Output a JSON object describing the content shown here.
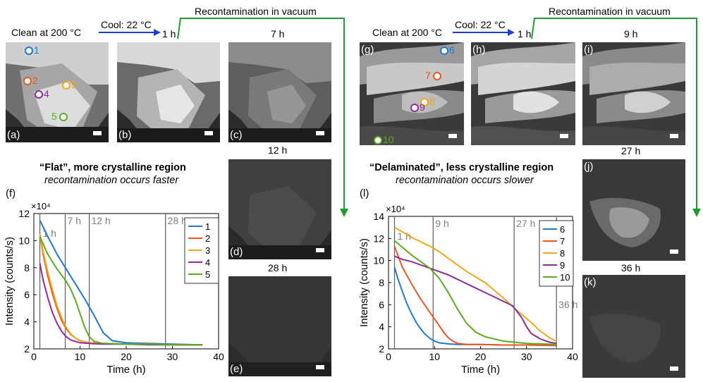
{
  "left": {
    "clean_label": "Clean at 200 °C",
    "cool_label": "Cool: 22 °C",
    "recont_label": "Recontamination in vacuum",
    "time_b": "1 h",
    "time_c": "7 h",
    "time_d": "12 h",
    "time_e": "28 h",
    "panels": {
      "a": "(a)",
      "b": "(b)",
      "c": "(c)",
      "d": "(d)",
      "e": "(e)",
      "f": "(f)"
    },
    "points": [
      {
        "label": "1",
        "color": "#1f77d0"
      },
      {
        "label": "2",
        "color": "#e8581c"
      },
      {
        "label": "3",
        "color": "#f2a51a"
      },
      {
        "label": "4",
        "color": "#8e2a9e"
      },
      {
        "label": "5",
        "color": "#5aab1e"
      }
    ],
    "title": "“Flat”, more crystalline region",
    "subtitle": "recontamination occurs faster"
  },
  "right": {
    "clean_label": "Clean at 200 °C",
    "cool_label": "Cool: 22 °C",
    "recont_label": "Recontamination in vacuum",
    "time_h": "1 h",
    "time_i": "9 h",
    "time_j": "27 h",
    "time_k": "36 h",
    "panels": {
      "g": "(g)",
      "h": "(h)",
      "i": "(i)",
      "j": "(j)",
      "k": "(k)",
      "l": "(l)"
    },
    "points": [
      {
        "label": "6",
        "color": "#1f77d0"
      },
      {
        "label": "7",
        "color": "#e8581c"
      },
      {
        "label": "8",
        "color": "#f2a51a"
      },
      {
        "label": "9",
        "color": "#8e2a9e"
      },
      {
        "label": "10",
        "color": "#5aab1e"
      }
    ],
    "title": "“Delaminated”, less crystalline region",
    "subtitle": "recontamination occurs slower"
  },
  "chart_data": [
    {
      "type": "line",
      "panel": "(f)",
      "xlabel": "Time (h)",
      "ylabel": "Intensity (counts/s)",
      "y_multiplier": "×10⁴",
      "xlim": [
        0,
        40
      ],
      "ylim": [
        2,
        12
      ],
      "xticks": [
        0,
        10,
        20,
        30,
        40
      ],
      "yticks": [
        2,
        4,
        6,
        8,
        10,
        12
      ],
      "vlines": [
        {
          "x": 1.3,
          "label": "1 h"
        },
        {
          "x": 6.8,
          "label": "7 h"
        },
        {
          "x": 12,
          "label": "12 h"
        },
        {
          "x": 28.5,
          "label": "28 h"
        }
      ],
      "legend_position": "top-right",
      "series": [
        {
          "name": "1",
          "color": "#1f77d0",
          "x": [
            1.3,
            3,
            5,
            7,
            9,
            11,
            13,
            15,
            17,
            20,
            25,
            30,
            36.5
          ],
          "y": [
            11.5,
            10.3,
            9.0,
            7.9,
            6.8,
            5.7,
            4.5,
            3.2,
            2.6,
            2.45,
            2.4,
            2.35,
            2.3
          ]
        },
        {
          "name": "2",
          "color": "#e8581c",
          "x": [
            1.3,
            2,
            3,
            4,
            5,
            6,
            7,
            8,
            9,
            10,
            12,
            15,
            20,
            25,
            30,
            36.5
          ],
          "y": [
            10.5,
            9.0,
            7.4,
            6.1,
            5.0,
            4.1,
            3.5,
            3.05,
            2.8,
            2.6,
            2.45,
            2.4,
            2.35,
            2.35,
            2.3,
            2.3
          ]
        },
        {
          "name": "3",
          "color": "#f2a51a",
          "x": [
            1.3,
            2,
            3,
            4,
            5,
            6,
            7,
            8,
            9,
            10,
            12,
            15,
            20,
            25,
            30,
            36.5
          ],
          "y": [
            10.5,
            9.2,
            7.7,
            6.4,
            5.2,
            4.3,
            3.6,
            3.1,
            2.8,
            2.6,
            2.45,
            2.4,
            2.35,
            2.35,
            2.3,
            2.3
          ]
        },
        {
          "name": "4",
          "color": "#8e2a9e",
          "x": [
            1.3,
            2,
            3,
            4,
            5,
            6,
            7,
            8,
            10,
            12,
            15,
            20,
            25,
            30,
            36.5
          ],
          "y": [
            8.3,
            7.1,
            5.8,
            4.7,
            3.9,
            3.3,
            2.9,
            2.65,
            2.45,
            2.4,
            2.35,
            2.35,
            2.3,
            2.3,
            2.3
          ]
        },
        {
          "name": "5",
          "color": "#5aab1e",
          "x": [
            1.3,
            3,
            5,
            7,
            8,
            9,
            10,
            11,
            12,
            13,
            15,
            20,
            25,
            30,
            36.5
          ],
          "y": [
            10.3,
            9.0,
            7.9,
            7.0,
            6.4,
            5.6,
            4.6,
            3.6,
            2.9,
            2.55,
            2.4,
            2.35,
            2.35,
            2.3,
            2.3
          ]
        }
      ]
    },
    {
      "type": "line",
      "panel": "(l)",
      "xlabel": "Time (h)",
      "ylabel": "Intensity (counts/s)",
      "y_multiplier": "×10⁴",
      "xlim": [
        0,
        40
      ],
      "ylim": [
        2,
        14
      ],
      "xticks": [
        0,
        10,
        20,
        30,
        40
      ],
      "yticks": [
        2,
        4,
        6,
        8,
        10,
        12,
        14
      ],
      "vlines": [
        {
          "x": 1.3,
          "label": "1 h"
        },
        {
          "x": 9.7,
          "label": "9 h"
        },
        {
          "x": 27.3,
          "label": "27 h"
        },
        {
          "x": 36.5,
          "label": "36 h"
        }
      ],
      "legend_position": "top-right",
      "series": [
        {
          "name": "6",
          "color": "#1f77d0",
          "x": [
            1.3,
            2,
            3,
            4,
            5,
            6,
            7,
            8,
            9,
            10,
            11,
            13,
            15,
            20,
            25,
            30,
            36.5
          ],
          "y": [
            9.4,
            8.4,
            7.2,
            6.1,
            5.2,
            4.4,
            3.8,
            3.3,
            2.95,
            2.7,
            2.55,
            2.45,
            2.4,
            2.4,
            2.35,
            2.35,
            2.3
          ]
        },
        {
          "name": "7",
          "color": "#e8581c",
          "x": [
            1.3,
            3,
            5,
            7,
            9,
            11,
            12,
            13,
            14,
            15,
            17,
            20,
            25,
            30,
            36.5
          ],
          "y": [
            11.3,
            9.4,
            7.9,
            6.5,
            5.3,
            4.1,
            3.5,
            3.0,
            2.7,
            2.5,
            2.4,
            2.4,
            2.35,
            2.35,
            2.3
          ]
        },
        {
          "name": "8",
          "color": "#f2a51a",
          "x": [
            1.3,
            3,
            5,
            7,
            9,
            11,
            13,
            15,
            17,
            19,
            21,
            23,
            25,
            27,
            29,
            31,
            33,
            35,
            36.5
          ],
          "y": [
            13.0,
            12.6,
            12.1,
            11.7,
            11.3,
            10.8,
            10.2,
            9.6,
            9.0,
            8.5,
            8.0,
            7.3,
            6.6,
            5.8,
            5.1,
            4.4,
            3.6,
            3.0,
            2.7
          ]
        },
        {
          "name": "9",
          "color": "#8e2a9e",
          "x": [
            1.3,
            3,
            5,
            7,
            9,
            11,
            13,
            15,
            17,
            19,
            21,
            23,
            25,
            27,
            29,
            30,
            31,
            33,
            35,
            36.5
          ],
          "y": [
            10.4,
            10.1,
            9.9,
            9.6,
            9.3,
            9.0,
            8.7,
            8.3,
            7.9,
            7.5,
            7.1,
            6.7,
            6.3,
            5.9,
            4.8,
            4.0,
            3.4,
            2.9,
            2.6,
            2.5
          ]
        },
        {
          "name": "10",
          "color": "#5aab1e",
          "x": [
            1.3,
            3,
            5,
            7,
            9,
            11,
            13,
            15,
            17,
            19,
            21,
            25,
            30,
            36.5
          ],
          "y": [
            11.8,
            11.2,
            10.5,
            9.9,
            9.3,
            8.4,
            7.1,
            5.6,
            4.3,
            3.5,
            3.1,
            2.7,
            2.5,
            2.4
          ]
        }
      ]
    }
  ]
}
